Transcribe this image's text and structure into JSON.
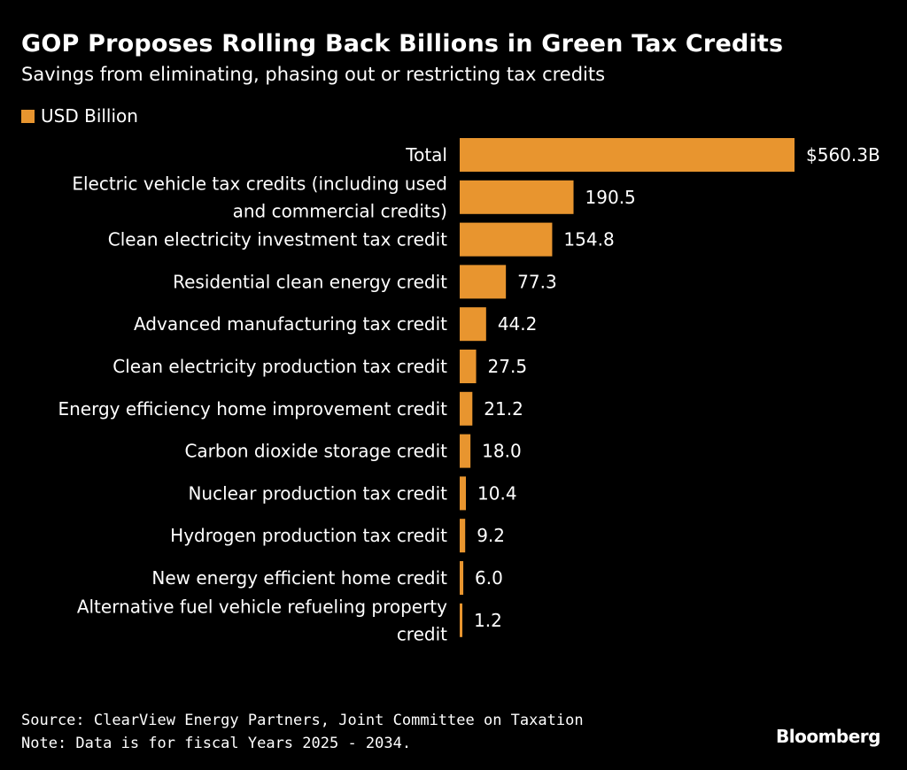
{
  "header": {
    "title": "GOP Proposes Rolling Back Billions in Green Tax Credits",
    "subtitle": "Savings from eliminating, phasing out or restricting tax credits"
  },
  "legend": {
    "label": "USD Billion",
    "color": "#e8952f"
  },
  "footer": {
    "source": "Source: ClearView Energy Partners, Joint Committee on Taxation",
    "note": "Note: Data is for fiscal Years 2025 - 2034."
  },
  "brand": {
    "name": "Bloomberg"
  },
  "chart_data": {
    "type": "bar",
    "orientation": "horizontal",
    "grid": false,
    "bar_color": "#e8952f",
    "categories": [
      [
        "Total"
      ],
      [
        "Electric vehicle tax credits (including used",
        "and commercial credits)"
      ],
      [
        "Clean electricity investment tax credit"
      ],
      [
        "Residential clean energy credit"
      ],
      [
        "Advanced manufacturing tax credit"
      ],
      [
        "Clean electricity production tax credit"
      ],
      [
        "Energy efficiency home improvement credit"
      ],
      [
        "Carbon dioxide storage credit"
      ],
      [
        "Nuclear production tax credit"
      ],
      [
        "Hydrogen production tax credit"
      ],
      [
        "New energy efficient home credit"
      ],
      [
        "Alternative fuel vehicle refueling property",
        "credit"
      ]
    ],
    "series": [
      {
        "name": "USD Billion",
        "values": [
          560.3,
          190.5,
          154.8,
          77.3,
          44.2,
          27.5,
          21.2,
          18.0,
          10.4,
          9.2,
          6.0,
          1.2
        ]
      }
    ],
    "value_labels": [
      "$560.3B",
      "190.5",
      "154.8",
      "77.3",
      "44.2",
      "27.5",
      "21.2",
      "18.0",
      "10.4",
      "9.2",
      "6.0",
      "1.2"
    ],
    "xlim": [
      0,
      560.3
    ]
  }
}
